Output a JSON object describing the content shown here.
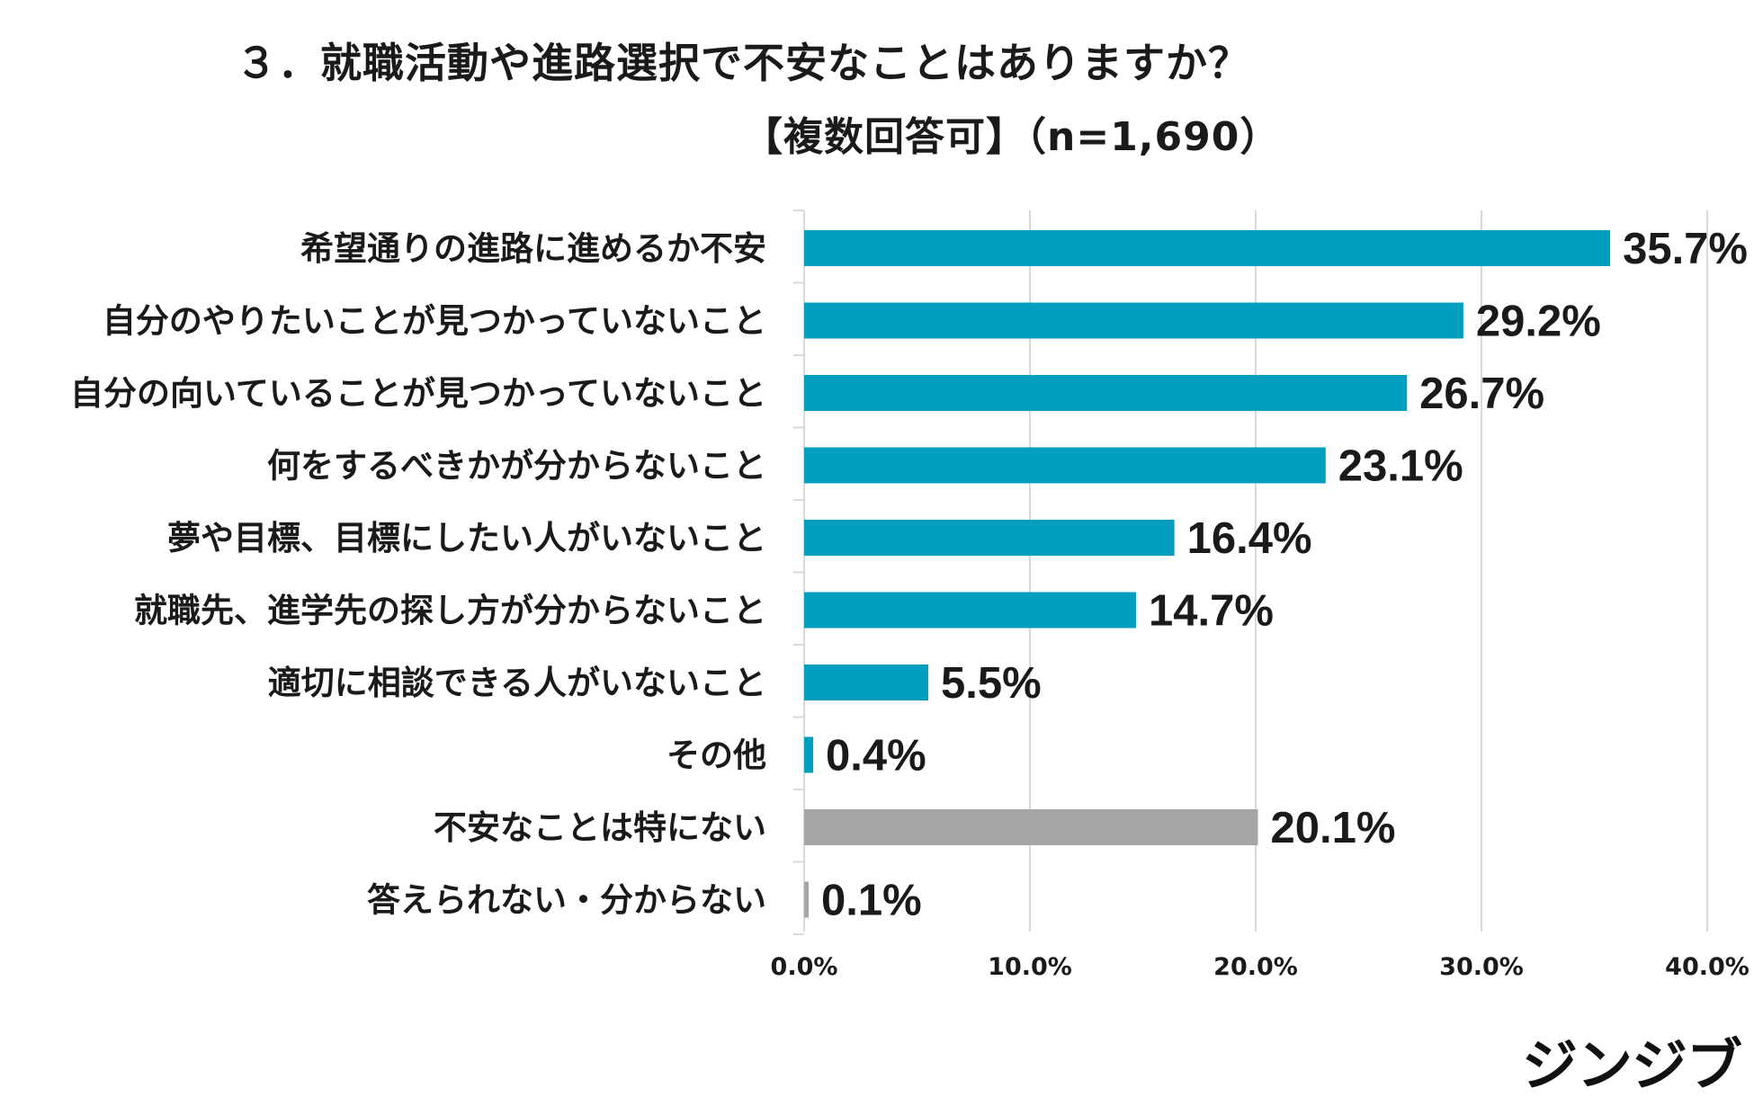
{
  "header": {
    "title": "３．就職活動や進路選択で不安なことはありますか？",
    "subtitle": "【複数回答可】（n=1,690）"
  },
  "brand": {
    "logo_text": "ジンジブ"
  },
  "chart_data": {
    "type": "bar",
    "orientation": "horizontal",
    "title": "３．就職活動や進路選択で不安なことはありますか？",
    "subtitle": "【複数回答可】（n=1,690）",
    "categories": [
      "希望通りの進路に進めるか不安",
      "自分のやりたいことが見つかっていないこと",
      "自分の向いていることが見つかっていないこと",
      "何をするべきかが分からないこと",
      "夢や目標、目標にしたい人がいないこと",
      "就職先、進学先の探し方が分からないこと",
      "適切に相談できる人がいないこと",
      "その他",
      "不安なことは特にない",
      "答えられない・分からない"
    ],
    "values": [
      35.7,
      29.2,
      26.7,
      23.1,
      16.4,
      14.7,
      5.5,
      0.4,
      20.1,
      0.1
    ],
    "value_labels": [
      "35.7%",
      "29.2%",
      "26.7%",
      "23.1%",
      "16.4%",
      "14.7%",
      "5.5%",
      "0.4%",
      "20.1%",
      "0.1%"
    ],
    "bar_colors": [
      "#009fbf",
      "#009fbf",
      "#009fbf",
      "#009fbf",
      "#009fbf",
      "#009fbf",
      "#009fbf",
      "#009fbf",
      "#a6a6a6",
      "#a6a6a6"
    ],
    "xlim": [
      0,
      40
    ],
    "xticks": [
      0,
      10,
      20,
      30,
      40
    ],
    "xtick_labels": [
      "0.0%",
      "10.0%",
      "20.0%",
      "30.0%",
      "40.0%"
    ],
    "grid": true,
    "xlabel": "",
    "ylabel": ""
  }
}
